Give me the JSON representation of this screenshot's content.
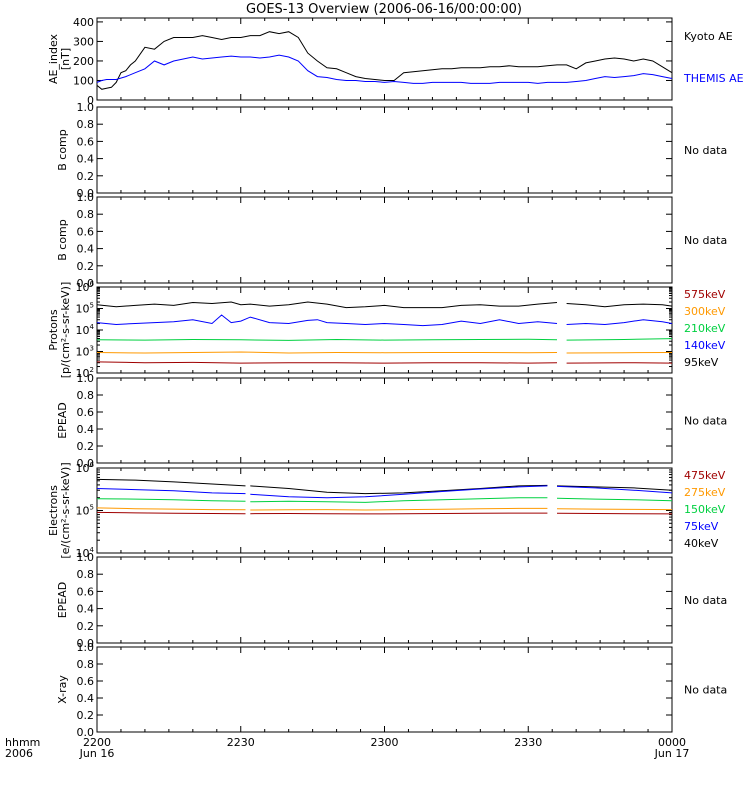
{
  "title": "GOES-13 Overview (2006-06-16/00:00:00)",
  "time_axis": {
    "row1_label": "hhmm",
    "row2_label": "2006",
    "ticks": [
      {
        "t": 0,
        "hhmm": "2200",
        "date": "Jun 16"
      },
      {
        "t": 30,
        "hhmm": "2230",
        "date": ""
      },
      {
        "t": 60,
        "hhmm": "2300",
        "date": ""
      },
      {
        "t": 90,
        "hhmm": "2330",
        "date": ""
      },
      {
        "t": 120,
        "hhmm": "0000",
        "date": "Jun 17"
      }
    ],
    "unit": "minutes after 2200 UT"
  },
  "chart_data": [
    {
      "type": "line",
      "panel": "ae",
      "ylabel": [
        "AE_index",
        "[nT]"
      ],
      "yrange": [
        0,
        420
      ],
      "yscale": "linear",
      "yticks": [
        0,
        100,
        200,
        300,
        400
      ],
      "series": [
        {
          "name": "Kyoto AE",
          "color": "#000000",
          "x": [
            0,
            1,
            2,
            3,
            4,
            5,
            6,
            7,
            8,
            10,
            12,
            14,
            16,
            18,
            20,
            22,
            24,
            26,
            28,
            30,
            32,
            34,
            36,
            38,
            40,
            42,
            44,
            46,
            48,
            50,
            52,
            54,
            56,
            58,
            60,
            62,
            64,
            66,
            68,
            70,
            72,
            74,
            76,
            78,
            80,
            82,
            84,
            86,
            88,
            90,
            92,
            94,
            96,
            98,
            100,
            102,
            104,
            106,
            108,
            110,
            112,
            114,
            116,
            118,
            120
          ],
          "y": [
            75,
            55,
            60,
            65,
            90,
            140,
            150,
            180,
            200,
            270,
            260,
            300,
            320,
            320,
            320,
            330,
            320,
            310,
            320,
            320,
            330,
            330,
            350,
            340,
            350,
            320,
            240,
            200,
            165,
            160,
            140,
            120,
            110,
            105,
            100,
            100,
            140,
            145,
            150,
            155,
            160,
            160,
            165,
            165,
            165,
            170,
            170,
            175,
            170,
            170,
            170,
            175,
            180,
            180,
            160,
            190,
            200,
            210,
            215,
            210,
            200,
            210,
            200,
            170,
            140
          ]
        },
        {
          "name": "THEMIS AE",
          "color": "#0000ff",
          "x": [
            0,
            1,
            2,
            4,
            6,
            8,
            10,
            12,
            14,
            16,
            18,
            20,
            22,
            24,
            26,
            28,
            30,
            32,
            34,
            36,
            38,
            40,
            42,
            44,
            46,
            48,
            50,
            52,
            54,
            56,
            58,
            60,
            62,
            64,
            66,
            68,
            70,
            72,
            74,
            76,
            78,
            80,
            82,
            84,
            86,
            88,
            90,
            92,
            94,
            96,
            98,
            100,
            102,
            104,
            106,
            108,
            110,
            112,
            114,
            116,
            118,
            120
          ],
          "y": [
            90,
            100,
            105,
            105,
            120,
            140,
            160,
            200,
            180,
            200,
            210,
            220,
            210,
            215,
            220,
            225,
            220,
            220,
            215,
            220,
            230,
            220,
            200,
            150,
            120,
            115,
            105,
            100,
            100,
            95,
            95,
            90,
            95,
            90,
            85,
            85,
            90,
            90,
            90,
            90,
            85,
            85,
            85,
            90,
            90,
            90,
            90,
            85,
            90,
            90,
            90,
            95,
            100,
            110,
            120,
            115,
            120,
            125,
            135,
            130,
            120,
            110
          ]
        }
      ]
    },
    {
      "type": "line",
      "panel": "bcomp1",
      "ylabel": [
        "B comp"
      ],
      "yrange": [
        0,
        1
      ],
      "yscale": "linear",
      "yticks": [
        0.0,
        0.2,
        0.4,
        0.6,
        0.8,
        1.0
      ],
      "nodata": "No data",
      "series": []
    },
    {
      "type": "line",
      "panel": "bcomp2",
      "ylabel": [
        "B comp"
      ],
      "yrange": [
        0,
        1
      ],
      "yscale": "linear",
      "yticks": [
        0.0,
        0.2,
        0.4,
        0.6,
        0.8,
        1.0
      ],
      "nodata": "No data",
      "series": []
    },
    {
      "type": "line",
      "panel": "protons",
      "ylabel": [
        "Protons",
        "[p/(cm²-s-sr-keV)]"
      ],
      "yrange": [
        100,
        1000000
      ],
      "yscale": "log",
      "yticks": [
        100,
        1000,
        10000,
        100000,
        1000000
      ],
      "gap": [
        96,
        98
      ],
      "series": [
        {
          "name": "95keV",
          "color": "#000000",
          "x": [
            0,
            4,
            8,
            12,
            16,
            20,
            24,
            28,
            30,
            32,
            36,
            40,
            44,
            48,
            52,
            56,
            60,
            64,
            68,
            72,
            76,
            80,
            84,
            88,
            92,
            96,
            98,
            102,
            106,
            110,
            114,
            118,
            120
          ],
          "y": [
            150000,
            120000,
            140000,
            160000,
            140000,
            190000,
            170000,
            200000,
            150000,
            160000,
            130000,
            150000,
            200000,
            160000,
            110000,
            120000,
            140000,
            110000,
            110000,
            110000,
            140000,
            150000,
            130000,
            130000,
            160000,
            190000,
            170000,
            150000,
            120000,
            150000,
            160000,
            150000,
            130000
          ]
        },
        {
          "name": "140keV",
          "color": "#0000ff",
          "x": [
            0,
            4,
            8,
            12,
            16,
            20,
            24,
            26,
            28,
            30,
            32,
            36,
            40,
            44,
            46,
            48,
            52,
            56,
            60,
            64,
            68,
            72,
            76,
            80,
            84,
            88,
            92,
            96,
            98,
            102,
            106,
            110,
            114,
            118,
            120
          ],
          "y": [
            22000,
            18000,
            20000,
            22000,
            24000,
            30000,
            20000,
            50000,
            22000,
            26000,
            40000,
            22000,
            20000,
            28000,
            30000,
            22000,
            20000,
            18000,
            20000,
            18000,
            16000,
            18000,
            26000,
            20000,
            30000,
            20000,
            24000,
            20000,
            18000,
            20000,
            18000,
            22000,
            30000,
            24000,
            20000
          ]
        },
        {
          "name": "210keV",
          "color": "#00d040",
          "x": [
            0,
            10,
            20,
            30,
            40,
            50,
            60,
            70,
            80,
            90,
            96,
            98,
            110,
            120
          ],
          "y": [
            3500,
            3400,
            3600,
            3500,
            3300,
            3600,
            3400,
            3500,
            3600,
            3700,
            3500,
            3400,
            3600,
            4000
          ]
        },
        {
          "name": "300keV",
          "color": "#ff9900",
          "x": [
            0,
            10,
            20,
            30,
            40,
            50,
            60,
            70,
            80,
            90,
            96,
            98,
            110,
            120
          ],
          "y": [
            900,
            850,
            900,
            950,
            850,
            900,
            880,
            900,
            900,
            880,
            900,
            850,
            880,
            900
          ]
        },
        {
          "name": "575keV",
          "color": "#a00000",
          "x": [
            0,
            10,
            20,
            30,
            40,
            50,
            60,
            70,
            80,
            90,
            96,
            98,
            110,
            120
          ],
          "y": [
            330,
            300,
            310,
            290,
            300,
            300,
            290,
            300,
            300,
            290,
            300,
            290,
            300,
            290
          ]
        }
      ]
    },
    {
      "type": "line",
      "panel": "epead1",
      "ylabel": [
        "EPEAD"
      ],
      "yrange": [
        0,
        1
      ],
      "yscale": "linear",
      "yticks": [
        0.0,
        0.2,
        0.4,
        0.6,
        0.8,
        1.0
      ],
      "nodata": "No data",
      "series": []
    },
    {
      "type": "line",
      "panel": "electrons",
      "ylabel": [
        "Electrons",
        "[e/(cm²-s-sr-keV)]"
      ],
      "yrange": [
        10000,
        1000000
      ],
      "yscale": "log",
      "yticks": [
        10000,
        100000,
        1000000
      ],
      "gap": [
        [
          31,
          32
        ],
        [
          94,
          96
        ]
      ],
      "series": [
        {
          "name": "40keV",
          "color": "#000000",
          "x": [
            0,
            8,
            16,
            24,
            31,
            32,
            40,
            48,
            56,
            64,
            72,
            80,
            88,
            94,
            96,
            104,
            112,
            120
          ],
          "y": [
            540000,
            520000,
            470000,
            420000,
            380000,
            380000,
            330000,
            270000,
            250000,
            260000,
            290000,
            330000,
            380000,
            390000,
            380000,
            360000,
            340000,
            300000
          ]
        },
        {
          "name": "75keV",
          "color": "#0000ff",
          "x": [
            0,
            8,
            16,
            24,
            31,
            32,
            40,
            48,
            56,
            64,
            72,
            80,
            88,
            94,
            96,
            104,
            112,
            120
          ],
          "y": [
            330000,
            310000,
            290000,
            260000,
            250000,
            240000,
            210000,
            200000,
            210000,
            240000,
            280000,
            320000,
            360000,
            380000,
            370000,
            340000,
            300000,
            260000
          ]
        },
        {
          "name": "150keV",
          "color": "#00d040",
          "x": [
            0,
            8,
            16,
            24,
            31,
            32,
            40,
            48,
            56,
            64,
            72,
            80,
            88,
            94,
            96,
            104,
            112,
            120
          ],
          "y": [
            190000,
            185000,
            180000,
            170000,
            165000,
            160000,
            165000,
            160000,
            155000,
            170000,
            180000,
            190000,
            200000,
            200000,
            195000,
            185000,
            180000,
            170000
          ]
        },
        {
          "name": "275keV",
          "color": "#ff9900",
          "x": [
            0,
            8,
            16,
            24,
            31,
            32,
            40,
            48,
            56,
            64,
            72,
            80,
            88,
            94,
            96,
            104,
            112,
            120
          ],
          "y": [
            115000,
            110000,
            108000,
            105000,
            104000,
            103000,
            104000,
            105000,
            103000,
            105000,
            107000,
            110000,
            112000,
            112000,
            110000,
            108000,
            106000,
            105000
          ]
        },
        {
          "name": "475keV",
          "color": "#a00000",
          "x": [
            0,
            8,
            16,
            24,
            31,
            32,
            40,
            48,
            56,
            64,
            72,
            80,
            88,
            94,
            96,
            104,
            112,
            120
          ],
          "y": [
            90000,
            88000,
            86000,
            85000,
            84000,
            84000,
            85000,
            84000,
            83000,
            84000,
            85000,
            86000,
            87000,
            87000,
            86000,
            85000,
            84000,
            83000
          ]
        }
      ]
    },
    {
      "type": "line",
      "panel": "epead2",
      "ylabel": [
        "EPEAD"
      ],
      "yrange": [
        0,
        1
      ],
      "yscale": "linear",
      "yticks": [
        0.0,
        0.2,
        0.4,
        0.6,
        0.8,
        1.0
      ],
      "nodata": "No data",
      "series": []
    },
    {
      "type": "line",
      "panel": "xray",
      "ylabel": [
        "X-ray"
      ],
      "yrange": [
        0,
        1
      ],
      "yscale": "linear",
      "yticks": [
        0.0,
        0.2,
        0.4,
        0.6,
        0.8,
        1.0
      ],
      "nodata": "No data",
      "series": []
    }
  ],
  "right_labels": {
    "ae": [
      {
        "text": "Kyoto AE",
        "color": "#000000"
      },
      {
        "text": "THEMIS AE",
        "color": "#0000ff"
      }
    ],
    "protons": [
      {
        "text": "575keV",
        "color": "#a00000"
      },
      {
        "text": "300keV",
        "color": "#ff9900"
      },
      {
        "text": "210keV",
        "color": "#00d040"
      },
      {
        "text": "140keV",
        "color": "#0000ff"
      },
      {
        "text": "95keV",
        "color": "#000000"
      }
    ],
    "electrons": [
      {
        "text": "475keV",
        "color": "#a00000"
      },
      {
        "text": "275keV",
        "color": "#ff9900"
      },
      {
        "text": "150keV",
        "color": "#00d040"
      },
      {
        "text": "75keV",
        "color": "#0000ff"
      },
      {
        "text": "40keV",
        "color": "#000000"
      }
    ]
  }
}
